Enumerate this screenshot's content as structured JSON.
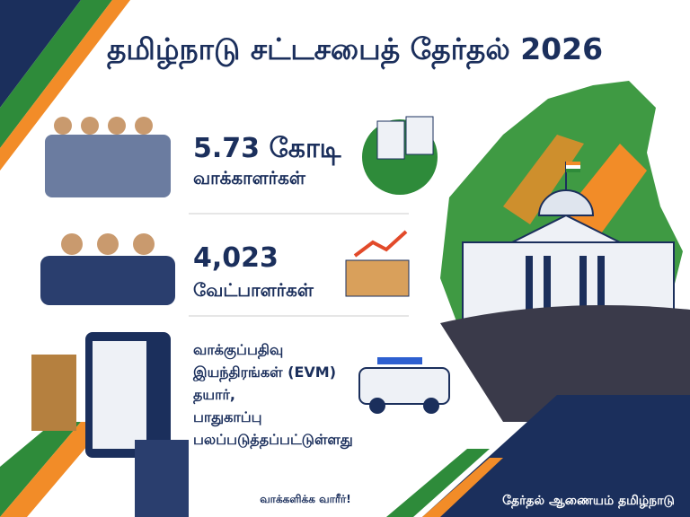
{
  "header": {
    "title": "தமிழ்நாடு சட்டசபைத் தேர்தல் 2026"
  },
  "items": [
    {
      "headline": "5.73 கோடி",
      "label": "வாக்காளர்கள்"
    },
    {
      "headline": "4,023",
      "label": "வேட்பாளர்கள்"
    },
    {
      "lines": [
        "வாக்குப்பதிவு",
        "இயந்திரங்கள் (EVM)",
        "தயார்,",
        "பாதுகாப்பு",
        "பலப்படுத்தப்பட்டுள்ளது"
      ]
    }
  ],
  "footer": {
    "slogan": "வாக்களிக்க வாரீர்!",
    "issuer": "தேர்தல் ஆணையம் தமிழ்நாடு"
  }
}
